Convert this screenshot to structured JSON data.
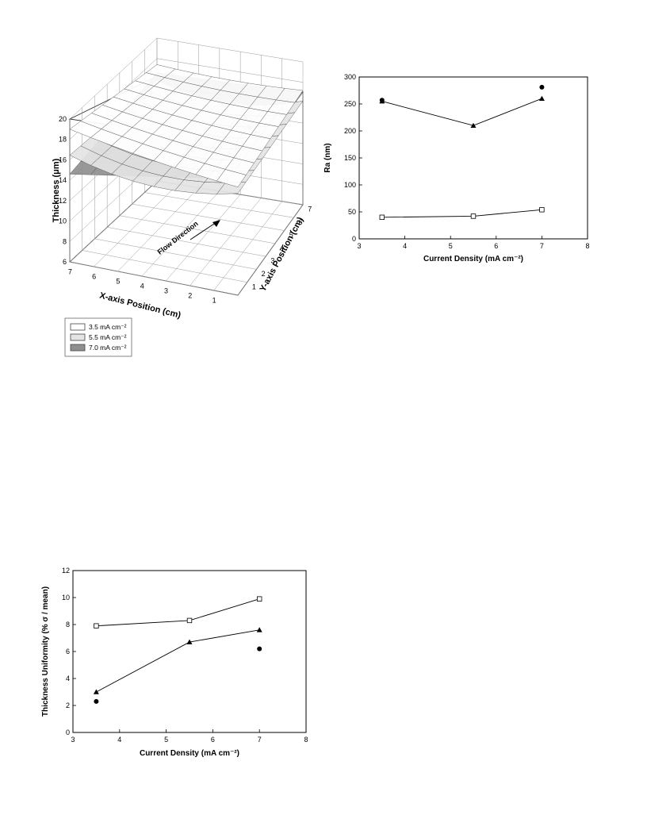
{
  "chart_data": [
    {
      "type": "surface3d",
      "x_axis": {
        "label": "X-axis Position (cm)",
        "ticks": [
          "1",
          "2",
          "3",
          "4",
          "5",
          "6",
          "7"
        ]
      },
      "y_axis": {
        "label": "Y-axis Position (cm)",
        "ticks": [
          "1",
          "2",
          "3",
          "4",
          "5",
          "6",
          "7"
        ]
      },
      "z_axis": {
        "label": "Thickness (μm)",
        "ticks": [
          "6",
          "8",
          "10",
          "12",
          "14",
          "16",
          "18",
          "20"
        ],
        "range": [
          6,
          20
        ]
      },
      "annotation": "Flow Direction",
      "legend": [
        {
          "label": "3.5 mA cm⁻²",
          "color": "#ffffff"
        },
        {
          "label": "5.5 mA cm⁻²",
          "color": "#e4e4e4"
        },
        {
          "label": "7.0 mA cm⁻²",
          "color": "#8f8f8f"
        }
      ]
    },
    {
      "type": "line",
      "xlabel": "Current Density (mA cm⁻²)",
      "ylabel": "Ra (nm)",
      "xlim": [
        3,
        8
      ],
      "ylim": [
        0,
        300
      ],
      "xticks": [
        3,
        4,
        5,
        6,
        7,
        8
      ],
      "yticks": [
        0,
        50,
        100,
        150,
        200,
        250,
        300
      ],
      "series": [
        {
          "marker": "triangle",
          "line": true,
          "points": [
            [
              3.5,
              255
            ],
            [
              5.5,
              210
            ],
            [
              7,
              260
            ]
          ]
        },
        {
          "marker": "open-square",
          "line": true,
          "points": [
            [
              3.5,
              40
            ],
            [
              5.5,
              42
            ],
            [
              7,
              54
            ]
          ]
        },
        {
          "marker": "circle",
          "line": false,
          "points": [
            [
              3.5,
              257
            ],
            [
              7,
              281
            ]
          ]
        }
      ]
    },
    {
      "type": "line",
      "xlabel": "Current Density (mA cm⁻²)",
      "ylabel": "Thickness Uniformity (% σ / mean)",
      "xlim": [
        3,
        8
      ],
      "ylim": [
        0,
        12
      ],
      "xticks": [
        3,
        4,
        5,
        6,
        7,
        8
      ],
      "yticks": [
        0,
        2,
        4,
        6,
        8,
        10,
        12
      ],
      "series": [
        {
          "marker": "open-square",
          "line": true,
          "points": [
            [
              3.5,
              7.9
            ],
            [
              5.5,
              8.3
            ],
            [
              7,
              9.9
            ]
          ]
        },
        {
          "marker": "triangle",
          "line": true,
          "points": [
            [
              3.5,
              3.0
            ],
            [
              5.5,
              6.7
            ],
            [
              7,
              7.6
            ]
          ]
        },
        {
          "marker": "circle",
          "line": false,
          "points": [
            [
              3.5,
              2.3
            ],
            [
              7,
              6.2
            ]
          ]
        }
      ]
    }
  ]
}
